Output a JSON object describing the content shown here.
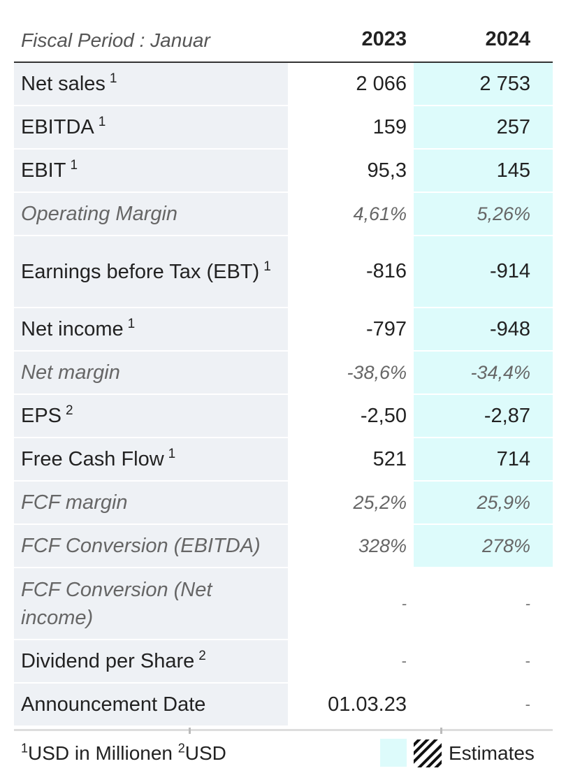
{
  "header": {
    "period_label": "Fiscal Period : Januar",
    "years": [
      "2023",
      "2024"
    ]
  },
  "rows": [
    {
      "label": "Net sales",
      "sup": "1",
      "v1": "2 066",
      "v2": "2 753",
      "italic": false,
      "estimate": true
    },
    {
      "label": "EBITDA",
      "sup": "1",
      "v1": "159",
      "v2": "257",
      "italic": false,
      "estimate": true
    },
    {
      "label": "EBIT",
      "sup": "1",
      "v1": "95,3",
      "v2": "145",
      "italic": false,
      "estimate": true
    },
    {
      "label": "Operating Margin",
      "sup": "",
      "v1": "4,61%",
      "v2": "5,26%",
      "italic": true,
      "estimate": true
    },
    {
      "label": "Earnings before Tax (EBT)",
      "sup": "1",
      "v1": "-816",
      "v2": "-914",
      "italic": false,
      "estimate": true
    },
    {
      "label": "Net income",
      "sup": "1",
      "v1": "-797",
      "v2": "-948",
      "italic": false,
      "estimate": true
    },
    {
      "label": "Net margin",
      "sup": "",
      "v1": "-38,6%",
      "v2": "-34,4%",
      "italic": true,
      "estimate": true
    },
    {
      "label": "EPS",
      "sup": "2",
      "v1": "-2,50",
      "v2": "-2,87",
      "italic": false,
      "estimate": true
    },
    {
      "label": "Free Cash Flow",
      "sup": "1",
      "v1": "521",
      "v2": "714",
      "italic": false,
      "estimate": true
    },
    {
      "label": "FCF margin",
      "sup": "",
      "v1": "25,2%",
      "v2": "25,9%",
      "italic": true,
      "estimate": true
    },
    {
      "label": "FCF Conversion (EBITDA)",
      "sup": "",
      "v1": "328%",
      "v2": "278%",
      "italic": true,
      "estimate": true
    },
    {
      "label": "FCF Conversion (Net income)",
      "sup": "",
      "v1": "-",
      "v2": "-",
      "italic": true,
      "estimate": false
    },
    {
      "label": "Dividend per Share",
      "sup": "2",
      "v1": "-",
      "v2": "-",
      "italic": false,
      "estimate": false
    },
    {
      "label": "Announcement Date",
      "sup": "",
      "v1": "01.03.23",
      "v2": "-",
      "italic": false,
      "estimate": false
    }
  ],
  "footer": {
    "note1_sup": "1",
    "note1_text": "USD in Millionen ",
    "note2_sup": "2",
    "note2_text": "USD",
    "legend_label": "Estimates",
    "estimate_color": "#ddfbfb"
  }
}
